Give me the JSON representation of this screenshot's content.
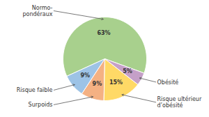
{
  "chart_data": {
    "type": "pie",
    "categories": [
      "Normo-\npondéraux",
      "Risque faible",
      "Surpoids",
      "Risque ultérieur\nd’obésité",
      "Obésité"
    ],
    "values": [
      63,
      9,
      9,
      15,
      5
    ],
    "value_labels": [
      "63%",
      "9%",
      "9%",
      "15%",
      "5%"
    ],
    "colors": [
      "#a8d08d",
      "#9dc3e6",
      "#f4b183",
      "#ffd966",
      "#c5a0c8"
    ],
    "data_labels": true
  }
}
